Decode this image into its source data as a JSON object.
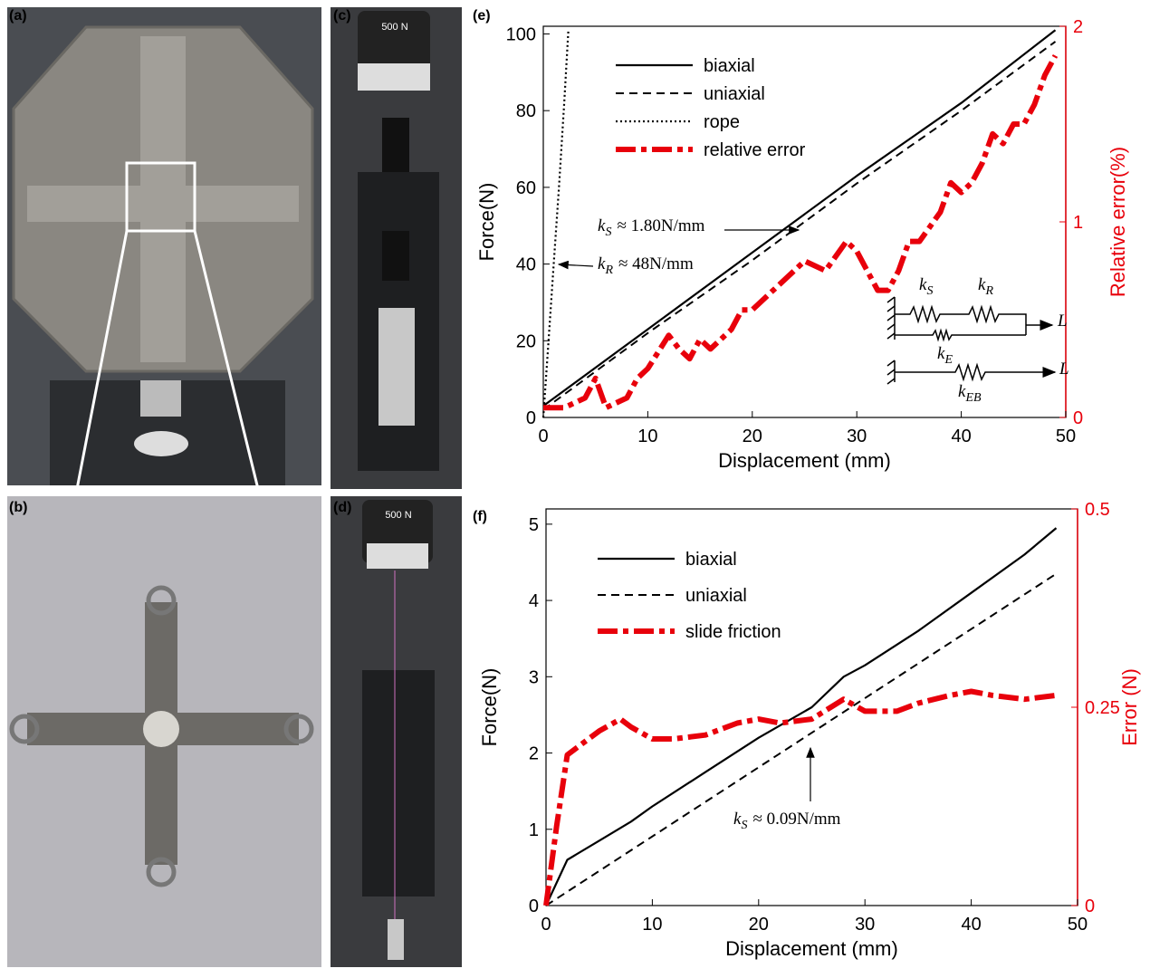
{
  "panels": {
    "labels": [
      "(a)",
      "(b)",
      "(c)",
      "(d)",
      "(e)",
      "(f)"
    ],
    "photo_texts": [
      "500 N",
      "500 N"
    ]
  },
  "chart_data": [
    {
      "type": "line",
      "xlabel": "Displacement (mm)",
      "ylabel": "Force(N)",
      "y2label": "Relative error(%)",
      "y2color": "#e8000b",
      "xlim": [
        0,
        50
      ],
      "xticks": [
        0,
        10,
        20,
        30,
        40,
        50
      ],
      "ylim": [
        0,
        102
      ],
      "yticks": [
        0,
        20,
        40,
        60,
        80,
        100
      ],
      "y2lim": [
        0,
        2
      ],
      "y2ticks": [
        0,
        1,
        2
      ],
      "series": [
        {
          "name": "biaxial",
          "color": "#000000",
          "style": "solid",
          "x": [
            0,
            10,
            20,
            30,
            40,
            49
          ],
          "values": [
            3,
            23,
            43,
            63,
            82,
            101
          ]
        },
        {
          "name": "uniaxial",
          "color": "#000000",
          "style": "dashed",
          "x": [
            0,
            10,
            20,
            30,
            40,
            49
          ],
          "values": [
            2,
            22,
            41,
            61,
            80,
            98
          ]
        },
        {
          "name": "rope",
          "color": "#000000",
          "style": "dotted",
          "x": [
            0,
            0.5,
            1,
            1.5,
            2,
            2.4
          ],
          "values": [
            0,
            20,
            40,
            60,
            82,
            101
          ]
        },
        {
          "name": "relative error",
          "color": "#e8000b",
          "style": "dashdot",
          "axis": "y2",
          "x": [
            0,
            2,
            4,
            5,
            6,
            8,
            9,
            10,
            12,
            13,
            14,
            15,
            16,
            18,
            19,
            20,
            22,
            24,
            25,
            27,
            29,
            30,
            31,
            32,
            33,
            34,
            35,
            36,
            38,
            39,
            40,
            41,
            42,
            43,
            44,
            45,
            46,
            47,
            48,
            49
          ],
          "values": [
            0.05,
            0.05,
            0.1,
            0.2,
            0.05,
            0.1,
            0.2,
            0.25,
            0.42,
            0.35,
            0.3,
            0.4,
            0.35,
            0.45,
            0.55,
            0.55,
            0.65,
            0.75,
            0.8,
            0.75,
            0.9,
            0.85,
            0.75,
            0.65,
            0.65,
            0.75,
            0.9,
            0.9,
            1.05,
            1.2,
            1.15,
            1.2,
            1.3,
            1.45,
            1.4,
            1.5,
            1.5,
            1.6,
            1.75,
            1.85
          ]
        }
      ],
      "annotations": [
        {
          "symbol": "k",
          "subscript": "S",
          "text": "≈ 1.80N/mm"
        },
        {
          "symbol": "k",
          "subscript": "R",
          "text": "≈ 48N/mm"
        },
        {
          "symbol": "k",
          "subscript": "S"
        },
        {
          "symbol": "k",
          "subscript": "R"
        },
        {
          "symbol": "L"
        },
        {
          "symbol": "k",
          "subscript": "E"
        },
        {
          "symbol": "L"
        },
        {
          "symbol": "k",
          "subscript": "EB"
        }
      ]
    },
    {
      "type": "line",
      "xlabel": "Displacement (mm)",
      "ylabel": "Force(N)",
      "y2label": "Error (N)",
      "y2color": "#e8000b",
      "xlim": [
        0,
        50
      ],
      "xticks": [
        0,
        10,
        20,
        30,
        40,
        50
      ],
      "ylim": [
        0,
        5.2
      ],
      "yticks": [
        0,
        1,
        2,
        3,
        4,
        5
      ],
      "y2lim": [
        0,
        0.5
      ],
      "y2ticks": [
        0,
        0.25,
        0.5
      ],
      "series": [
        {
          "name": "biaxial",
          "color": "#000000",
          "style": "solid",
          "x": [
            0,
            2,
            5,
            8,
            10,
            15,
            20,
            25,
            28,
            30,
            35,
            40,
            45,
            48
          ],
          "values": [
            0,
            0.6,
            0.85,
            1.1,
            1.3,
            1.75,
            2.2,
            2.6,
            3.0,
            3.15,
            3.6,
            4.1,
            4.6,
            4.95
          ]
        },
        {
          "name": "uniaxial",
          "color": "#000000",
          "style": "dashed",
          "x": [
            0,
            48
          ],
          "values": [
            0,
            4.35
          ]
        },
        {
          "name": "slide friction",
          "color": "#e8000b",
          "style": "dashdot",
          "axis": "y2",
          "x": [
            0,
            1,
            2,
            3,
            5,
            7,
            8,
            10,
            12,
            15,
            18,
            20,
            22,
            25,
            28,
            30,
            33,
            35,
            38,
            40,
            42,
            45,
            48
          ],
          "values": [
            0,
            0.1,
            0.19,
            0.2,
            0.22,
            0.235,
            0.225,
            0.21,
            0.21,
            0.215,
            0.23,
            0.235,
            0.23,
            0.235,
            0.26,
            0.245,
            0.245,
            0.255,
            0.265,
            0.27,
            0.265,
            0.26,
            0.265
          ]
        }
      ],
      "annotations": [
        {
          "symbol": "k",
          "subscript": "S",
          "text": "≈ 0.09N/mm"
        }
      ]
    }
  ]
}
